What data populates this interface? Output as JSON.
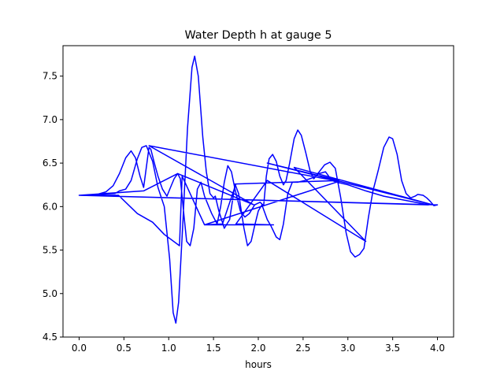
{
  "chart_data": {
    "type": "line",
    "title": "Water Depth h at gauge 5",
    "xlabel": "hours",
    "ylabel": "",
    "xlim": [
      -0.18,
      4.18
    ],
    "ylim": [
      4.5,
      7.85
    ],
    "x_ticks": [
      0.0,
      0.5,
      1.0,
      1.5,
      2.0,
      2.5,
      3.0,
      3.5,
      4.0
    ],
    "x_tick_labels": [
      "0.0",
      "0.5",
      "1.0",
      "1.5",
      "2.0",
      "2.5",
      "3.0",
      "3.5",
      "4.0"
    ],
    "y_ticks": [
      4.5,
      5.0,
      5.5,
      6.0,
      6.5,
      7.0,
      7.5
    ],
    "y_tick_labels": [
      "4.5",
      "5.0",
      "5.5",
      "6.0",
      "6.5",
      "7.0",
      "7.5"
    ],
    "grid": false,
    "legend": null,
    "series": [
      {
        "color": "#0000ff",
        "points": [
          [
            0.0,
            6.13
          ],
          [
            0.1,
            6.13
          ],
          [
            0.2,
            6.14
          ],
          [
            0.3,
            6.17
          ],
          [
            0.38,
            6.24
          ],
          [
            0.45,
            6.38
          ],
          [
            0.52,
            6.56
          ],
          [
            0.58,
            6.64
          ],
          [
            0.63,
            6.56
          ],
          [
            0.68,
            6.35
          ],
          [
            0.72,
            6.22
          ],
          [
            0.75,
            6.45
          ],
          [
            0.78,
            6.68
          ],
          [
            0.8,
            6.66
          ],
          [
            0.84,
            6.5
          ],
          [
            0.88,
            6.35
          ],
          [
            0.93,
            6.2
          ],
          [
            0.98,
            6.12
          ],
          [
            1.02,
            6.22
          ],
          [
            1.06,
            6.32
          ],
          [
            1.1,
            6.38
          ],
          [
            1.13,
            6.32
          ],
          [
            1.17,
            5.9
          ],
          [
            1.2,
            5.6
          ],
          [
            1.24,
            5.55
          ],
          [
            1.28,
            5.75
          ],
          [
            1.32,
            6.2
          ],
          [
            1.36,
            6.28
          ],
          [
            1.4,
            6.12
          ],
          [
            1.48,
            5.92
          ],
          [
            1.54,
            5.8
          ],
          [
            1.58,
            6.0
          ],
          [
            1.62,
            6.28
          ],
          [
            1.66,
            6.47
          ],
          [
            1.7,
            6.4
          ],
          [
            1.74,
            6.2
          ],
          [
            1.8,
            5.95
          ],
          [
            1.85,
            5.88
          ],
          [
            1.9,
            5.92
          ],
          [
            1.96,
            6.02
          ],
          [
            2.02,
            6.05
          ],
          [
            2.06,
            6.01
          ],
          [
            2.09,
            6.35
          ],
          [
            2.12,
            6.55
          ],
          [
            2.16,
            6.6
          ],
          [
            2.2,
            6.52
          ],
          [
            2.24,
            6.35
          ],
          [
            2.28,
            6.25
          ],
          [
            2.31,
            6.3
          ],
          [
            2.35,
            6.5
          ],
          [
            2.4,
            6.78
          ],
          [
            2.44,
            6.88
          ],
          [
            2.48,
            6.82
          ],
          [
            2.53,
            6.62
          ],
          [
            2.58,
            6.4
          ],
          [
            2.62,
            6.32
          ],
          [
            2.68,
            6.4
          ],
          [
            2.74,
            6.48
          ],
          [
            2.8,
            6.51
          ],
          [
            2.86,
            6.44
          ],
          [
            2.92,
            6.1
          ],
          [
            2.98,
            5.7
          ],
          [
            3.03,
            5.48
          ],
          [
            3.08,
            5.42
          ],
          [
            3.13,
            5.45
          ],
          [
            3.18,
            5.52
          ],
          [
            3.23,
            5.88
          ],
          [
            3.28,
            6.18
          ],
          [
            3.34,
            6.42
          ],
          [
            3.4,
            6.68
          ],
          [
            3.46,
            6.8
          ],
          [
            3.5,
            6.78
          ],
          [
            3.55,
            6.6
          ],
          [
            3.6,
            6.3
          ],
          [
            3.65,
            6.15
          ],
          [
            3.7,
            6.1
          ],
          [
            3.75,
            6.12
          ],
          [
            3.78,
            6.14
          ],
          [
            3.84,
            6.13
          ],
          [
            3.88,
            6.1
          ],
          [
            3.92,
            6.06
          ],
          [
            3.96,
            6.01
          ],
          [
            4.0,
            6.02
          ],
          [
            0.0,
            6.13
          ],
          [
            0.4,
            6.15
          ],
          [
            0.45,
            6.18
          ],
          [
            0.52,
            6.2
          ],
          [
            0.58,
            6.3
          ],
          [
            0.65,
            6.55
          ],
          [
            0.7,
            6.68
          ],
          [
            0.75,
            6.7
          ],
          [
            0.82,
            6.52
          ],
          [
            0.88,
            6.22
          ],
          [
            0.95,
            6.0
          ],
          [
            1.01,
            5.4
          ],
          [
            1.05,
            4.78
          ],
          [
            1.08,
            4.66
          ],
          [
            1.11,
            4.9
          ],
          [
            1.16,
            5.85
          ],
          [
            1.21,
            6.9
          ],
          [
            1.26,
            7.6
          ],
          [
            1.29,
            7.73
          ],
          [
            1.33,
            7.5
          ],
          [
            1.38,
            6.8
          ],
          [
            1.42,
            6.4
          ],
          [
            1.46,
            6.15
          ],
          [
            1.5,
            6.1
          ],
          [
            1.52,
            6.12
          ],
          [
            1.56,
            5.95
          ],
          [
            1.62,
            5.75
          ],
          [
            1.68,
            5.85
          ],
          [
            1.74,
            6.26
          ],
          [
            1.78,
            6.15
          ],
          [
            1.84,
            5.75
          ],
          [
            1.88,
            5.55
          ],
          [
            1.92,
            5.6
          ],
          [
            1.96,
            5.78
          ],
          [
            2.0,
            5.95
          ],
          [
            2.04,
            6.02
          ],
          [
            2.1,
            5.85
          ],
          [
            2.14,
            5.78
          ],
          [
            2.2,
            5.65
          ],
          [
            2.24,
            5.62
          ],
          [
            2.28,
            5.8
          ],
          [
            2.33,
            6.15
          ],
          [
            2.38,
            6.28
          ],
          [
            2.44,
            6.28
          ],
          [
            2.52,
            6.3
          ],
          [
            2.6,
            6.33
          ],
          [
            2.68,
            6.38
          ],
          [
            2.75,
            6.4
          ],
          [
            2.82,
            6.3
          ],
          [
            2.88,
            6.28
          ],
          [
            3.0,
            6.25
          ],
          [
            3.2,
            6.18
          ],
          [
            3.4,
            6.12
          ],
          [
            3.6,
            6.08
          ],
          [
            3.8,
            6.04
          ],
          [
            3.9,
            6.02
          ],
          [
            0.0,
            6.13
          ],
          [
            0.44,
            6.13
          ],
          [
            0.65,
            5.92
          ],
          [
            0.82,
            5.82
          ],
          [
            0.95,
            5.68
          ],
          [
            1.12,
            5.55
          ],
          [
            1.15,
            6.35
          ],
          [
            1.4,
            5.79
          ],
          [
            1.6,
            5.8
          ],
          [
            1.75,
            6.26
          ],
          [
            2.9,
            6.3
          ],
          [
            2.1,
            6.5
          ],
          [
            3.95,
            6.02
          ],
          [
            2.4,
            6.45
          ],
          [
            3.2,
            5.6
          ],
          [
            2.1,
            6.3
          ],
          [
            1.75,
            5.8
          ],
          [
            2.17,
            5.79
          ],
          [
            1.4,
            5.79
          ],
          [
            2.9,
            6.29
          ],
          [
            0.78,
            6.7
          ],
          [
            1.95,
            6.02
          ],
          [
            1.1,
            6.38
          ],
          [
            0.72,
            6.18
          ],
          [
            0.0,
            6.13
          ]
        ]
      }
    ]
  }
}
